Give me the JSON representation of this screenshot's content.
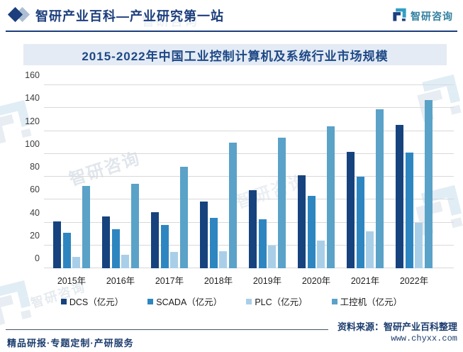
{
  "header": {
    "title": "智研产业百科—产业研究第一站",
    "logo_text": "智研咨询"
  },
  "chart_data": {
    "type": "bar",
    "title": "2015-2022年中国工业控制计算机及系统行业市场规模",
    "categories": [
      "2015年",
      "2016年",
      "2017年",
      "2018年",
      "2019年",
      "2020年",
      "2021年",
      "2022年"
    ],
    "series": [
      {
        "name": "DCS（亿元）",
        "color": "#16437e",
        "values": [
          41,
          45,
          49,
          58,
          68,
          81,
          102,
          125
        ]
      },
      {
        "name": "SCADA（亿元）",
        "color": "#2e86c1",
        "values": [
          31,
          34,
          38,
          44,
          43,
          63,
          80,
          101
        ]
      },
      {
        "name": "PLC（亿元）",
        "color": "#a9cfe8",
        "values": [
          10,
          12,
          14,
          15,
          20,
          24,
          32,
          40
        ]
      },
      {
        "name": "工控机（亿元）",
        "color": "#5aa2c8",
        "values": [
          72,
          74,
          89,
          110,
          114,
          124,
          139,
          147
        ]
      }
    ],
    "ylim": [
      0,
      160
    ],
    "ytick_step": 20,
    "grid": true,
    "legend_position": "bottom"
  },
  "footer": {
    "left": "精品研报·专题定制·产研服务",
    "source": "资料来源：智研产业百科整理",
    "site": "www.chyxx.com"
  },
  "watermark": {
    "text": "智研咨询"
  },
  "colors": {
    "accent_navy": "#1c3e7d",
    "band_bg": "#e4ebf4",
    "gridline": "#d9d9d9",
    "logo_teal": "#2f8fae"
  }
}
